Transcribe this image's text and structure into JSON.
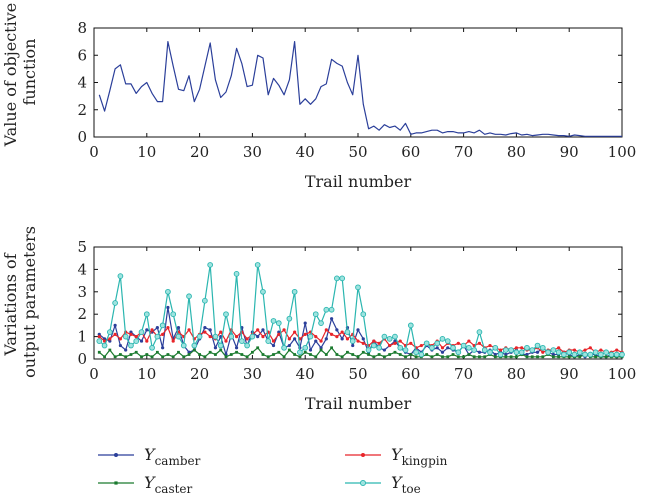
{
  "chart_data": [
    {
      "type": "line",
      "xlabel": "Trail number",
      "ylabel": "Value of objective function",
      "xlim": [
        0,
        100
      ],
      "ylim": [
        0,
        8
      ],
      "xticks": [
        "0",
        "10",
        "20",
        "30",
        "40",
        "50",
        "60",
        "70",
        "80",
        "90",
        "100"
      ],
      "yticks": [
        "0",
        "2",
        "4",
        "6",
        "8"
      ],
      "color": "#2b3f9a",
      "x": [
        1,
        2,
        3,
        4,
        5,
        6,
        7,
        8,
        9,
        10,
        11,
        12,
        13,
        14,
        15,
        16,
        17,
        18,
        19,
        20,
        21,
        22,
        23,
        24,
        25,
        26,
        27,
        28,
        29,
        30,
        31,
        32,
        33,
        34,
        35,
        36,
        37,
        38,
        39,
        40,
        41,
        42,
        43,
        44,
        45,
        46,
        47,
        48,
        49,
        50,
        51,
        52,
        53,
        54,
        55,
        56,
        57,
        58,
        59,
        60,
        61,
        62,
        63,
        64,
        65,
        66,
        67,
        68,
        69,
        70,
        71,
        72,
        73,
        74,
        75,
        76,
        77,
        78,
        79,
        80,
        81,
        82,
        83,
        84,
        85,
        86,
        87,
        88,
        89,
        90,
        91,
        92,
        93,
        94,
        95,
        96,
        97,
        98,
        99,
        100
      ],
      "values": [
        3.1,
        1.9,
        3.4,
        5.0,
        5.3,
        3.9,
        3.9,
        3.2,
        3.7,
        4.0,
        3.2,
        2.6,
        2.6,
        7.0,
        5.2,
        3.5,
        3.4,
        4.5,
        2.6,
        3.5,
        5.2,
        6.9,
        4.2,
        2.9,
        3.3,
        4.5,
        6.5,
        5.4,
        3.7,
        3.8,
        6.0,
        5.8,
        3.1,
        4.3,
        3.8,
        3.1,
        4.2,
        7.0,
        2.4,
        2.8,
        2.4,
        2.8,
        3.7,
        3.9,
        5.7,
        5.4,
        5.2,
        4.0,
        3.1,
        6.0,
        2.4,
        0.6,
        0.8,
        0.5,
        0.9,
        0.7,
        0.8,
        0.5,
        1.0,
        0.2,
        0.3,
        0.3,
        0.4,
        0.5,
        0.5,
        0.3,
        0.4,
        0.4,
        0.3,
        0.3,
        0.4,
        0.3,
        0.5,
        0.2,
        0.3,
        0.2,
        0.2,
        0.15,
        0.25,
        0.3,
        0.15,
        0.2,
        0.1,
        0.15,
        0.2,
        0.2,
        0.15,
        0.1,
        0.1,
        0.05,
        0.15,
        0.1,
        0.05,
        0.05,
        0.05,
        0.05,
        0.05,
        0.05,
        0.05,
        0.05
      ]
    },
    {
      "type": "line",
      "xlabel": "Trail number",
      "ylabel": "Variations of output parameters",
      "xlim": [
        0,
        100
      ],
      "ylim": [
        0,
        5
      ],
      "xticks": [
        "0",
        "10",
        "20",
        "30",
        "40",
        "50",
        "60",
        "70",
        "80",
        "90",
        "100"
      ],
      "yticks": [
        "0",
        "1",
        "2",
        "3",
        "4",
        "5"
      ],
      "legend": "bottom",
      "x": [
        1,
        2,
        3,
        4,
        5,
        6,
        7,
        8,
        9,
        10,
        11,
        12,
        13,
        14,
        15,
        16,
        17,
        18,
        19,
        20,
        21,
        22,
        23,
        24,
        25,
        26,
        27,
        28,
        29,
        30,
        31,
        32,
        33,
        34,
        35,
        36,
        37,
        38,
        39,
        40,
        41,
        42,
        43,
        44,
        45,
        46,
        47,
        48,
        49,
        50,
        51,
        52,
        53,
        54,
        55,
        56,
        57,
        58,
        59,
        60,
        61,
        62,
        63,
        64,
        65,
        66,
        67,
        68,
        69,
        70,
        71,
        72,
        73,
        74,
        75,
        76,
        77,
        78,
        79,
        80,
        81,
        82,
        83,
        84,
        85,
        86,
        87,
        88,
        89,
        90,
        91,
        92,
        93,
        94,
        95,
        96,
        97,
        98,
        99,
        100
      ],
      "series": [
        {
          "name_main": "Y",
          "name_sub": "camber",
          "color": "#2b3f9a",
          "marker": "dot",
          "values": [
            1.1,
            0.9,
            0.8,
            1.5,
            0.6,
            0.4,
            1.2,
            1.0,
            0.8,
            1.3,
            1.2,
            1.4,
            0.5,
            2.3,
            0.9,
            1.4,
            0.6,
            0.3,
            0.4,
            0.9,
            1.4,
            1.3,
            0.5,
            1.0,
            0.2,
            1.1,
            0.5,
            1.4,
            0.6,
            1.2,
            1.0,
            1.3,
            0.8,
            0.6,
            1.2,
            0.5,
            0.6,
            0.9,
            0.5,
            1.6,
            0.4,
            0.8,
            0.5,
            0.9,
            1.8,
            1.3,
            0.9,
            1.4,
            0.6,
            1.3,
            0.9,
            0.3,
            0.8,
            0.5,
            0.4,
            0.6,
            0.8,
            0.5,
            0.3,
            0.2,
            0.5,
            0.3,
            0.6,
            0.4,
            0.5,
            0.3,
            0.5,
            0.4,
            0.3,
            0.6,
            0.2,
            0.4,
            0.3,
            0.3,
            0.4,
            0.2,
            0.3,
            0.2,
            0.3,
            0.4,
            0.2,
            0.2,
            0.3,
            0.3,
            0.5,
            0.3,
            0.2,
            0.2,
            0.3,
            0.2,
            0.1,
            0.2,
            0.1,
            0.2,
            0.2,
            0.1,
            0.1,
            0.2,
            0.1,
            0.1
          ]
        },
        {
          "name_main": "Y",
          "name_sub": "kingpin",
          "color": "#e8252a",
          "marker": "dot",
          "values": [
            1.0,
            0.8,
            0.9,
            1.1,
            0.9,
            1.2,
            1.1,
            1.0,
            1.2,
            0.8,
            1.3,
            1.0,
            1.1,
            1.4,
            0.8,
            1.2,
            1.0,
            1.3,
            0.9,
            1.1,
            1.2,
            1.0,
            0.9,
            1.2,
            0.8,
            1.3,
            1.0,
            1.2,
            0.9,
            1.1,
            1.3,
            1.0,
            1.2,
            0.8,
            1.1,
            1.3,
            0.9,
            1.2,
            0.9,
            1.1,
            1.2,
            1.0,
            0.8,
            1.3,
            1.1,
            1.0,
            1.2,
            0.9,
            1.1,
            0.8,
            0.7,
            0.6,
            0.8,
            0.7,
            0.9,
            0.6,
            0.7,
            0.8,
            0.6,
            0.7,
            0.5,
            0.6,
            0.7,
            0.6,
            0.8,
            0.5,
            0.7,
            0.6,
            0.7,
            0.6,
            0.8,
            0.6,
            0.7,
            0.5,
            0.6,
            0.5,
            0.4,
            0.5,
            0.4,
            0.5,
            0.5,
            0.4,
            0.4,
            0.5,
            0.3,
            0.4,
            0.4,
            0.5,
            0.3,
            0.4,
            0.4,
            0.3,
            0.4,
            0.5,
            0.3,
            0.4,
            0.3,
            0.3,
            0.4,
            0.3
          ]
        },
        {
          "name_main": "Y",
          "name_sub": "caster",
          "color": "#1a7a2e",
          "marker": "square",
          "values": [
            0.3,
            0.1,
            0.4,
            0.1,
            0.2,
            0.1,
            0.2,
            0.3,
            0.1,
            0.2,
            0.1,
            0.3,
            0.1,
            0.2,
            0.1,
            0.3,
            0.1,
            0.2,
            0.4,
            0.2,
            0.1,
            0.3,
            0.2,
            0.4,
            0.1,
            0.2,
            0.3,
            0.2,
            0.1,
            0.3,
            0.5,
            0.2,
            0.1,
            0.2,
            0.3,
            0.1,
            0.4,
            0.2,
            0.1,
            0.3,
            0.2,
            0.1,
            0.4,
            0.2,
            0.5,
            0.2,
            0.1,
            0.3,
            0.2,
            0.1,
            0.3,
            0.2,
            0.1,
            0.2,
            0.1,
            0.2,
            0.3,
            0.2,
            0.1,
            0.2,
            0.1,
            0.1,
            0.2,
            0.1,
            0.2,
            0.1,
            0.1,
            0.2,
            0.1,
            0.1,
            0.2,
            0.1,
            0.1,
            0.1,
            0.2,
            0.1,
            0.1,
            0.1,
            0.1,
            0.1,
            0.2,
            0.1,
            0.1,
            0.1,
            0.1,
            0.2,
            0.1,
            0.1,
            0.1,
            0.1,
            0.1,
            0.1,
            0.2,
            0.1,
            0.1,
            0.1,
            0.1,
            0.1,
            0.1,
            0.1
          ]
        },
        {
          "name_main": "Y",
          "name_sub": "toe",
          "color": "#2bb6b0",
          "marker": "circle",
          "values": [
            0.8,
            0.6,
            1.2,
            2.5,
            3.7,
            1.0,
            0.6,
            0.8,
            1.2,
            2.0,
            0.5,
            1.0,
            1.5,
            3.0,
            2.0,
            1.0,
            0.6,
            2.8,
            0.6,
            1.0,
            2.6,
            4.2,
            1.0,
            0.6,
            2.0,
            1.0,
            3.8,
            0.8,
            0.6,
            1.0,
            4.2,
            3.0,
            0.8,
            1.7,
            1.6,
            0.5,
            1.8,
            3.0,
            0.3,
            0.5,
            1.0,
            2.0,
            1.6,
            2.2,
            2.2,
            3.6,
            3.6,
            1.2,
            0.8,
            3.2,
            2.0,
            0.4,
            0.6,
            0.5,
            1.0,
            0.9,
            1.0,
            0.5,
            0.4,
            1.5,
            0.3,
            0.2,
            0.7,
            0.5,
            0.7,
            0.9,
            0.8,
            0.5,
            0.3,
            0.6,
            0.5,
            0.4,
            1.2,
            0.4,
            0.3,
            0.5,
            0.2,
            0.4,
            0.4,
            0.3,
            0.3,
            0.5,
            0.4,
            0.6,
            0.5,
            0.3,
            0.4,
            0.3,
            0.2,
            0.3,
            0.2,
            0.3,
            0.2,
            0.2,
            0.3,
            0.2,
            0.3,
            0.2,
            0.2,
            0.2
          ]
        }
      ]
    }
  ]
}
